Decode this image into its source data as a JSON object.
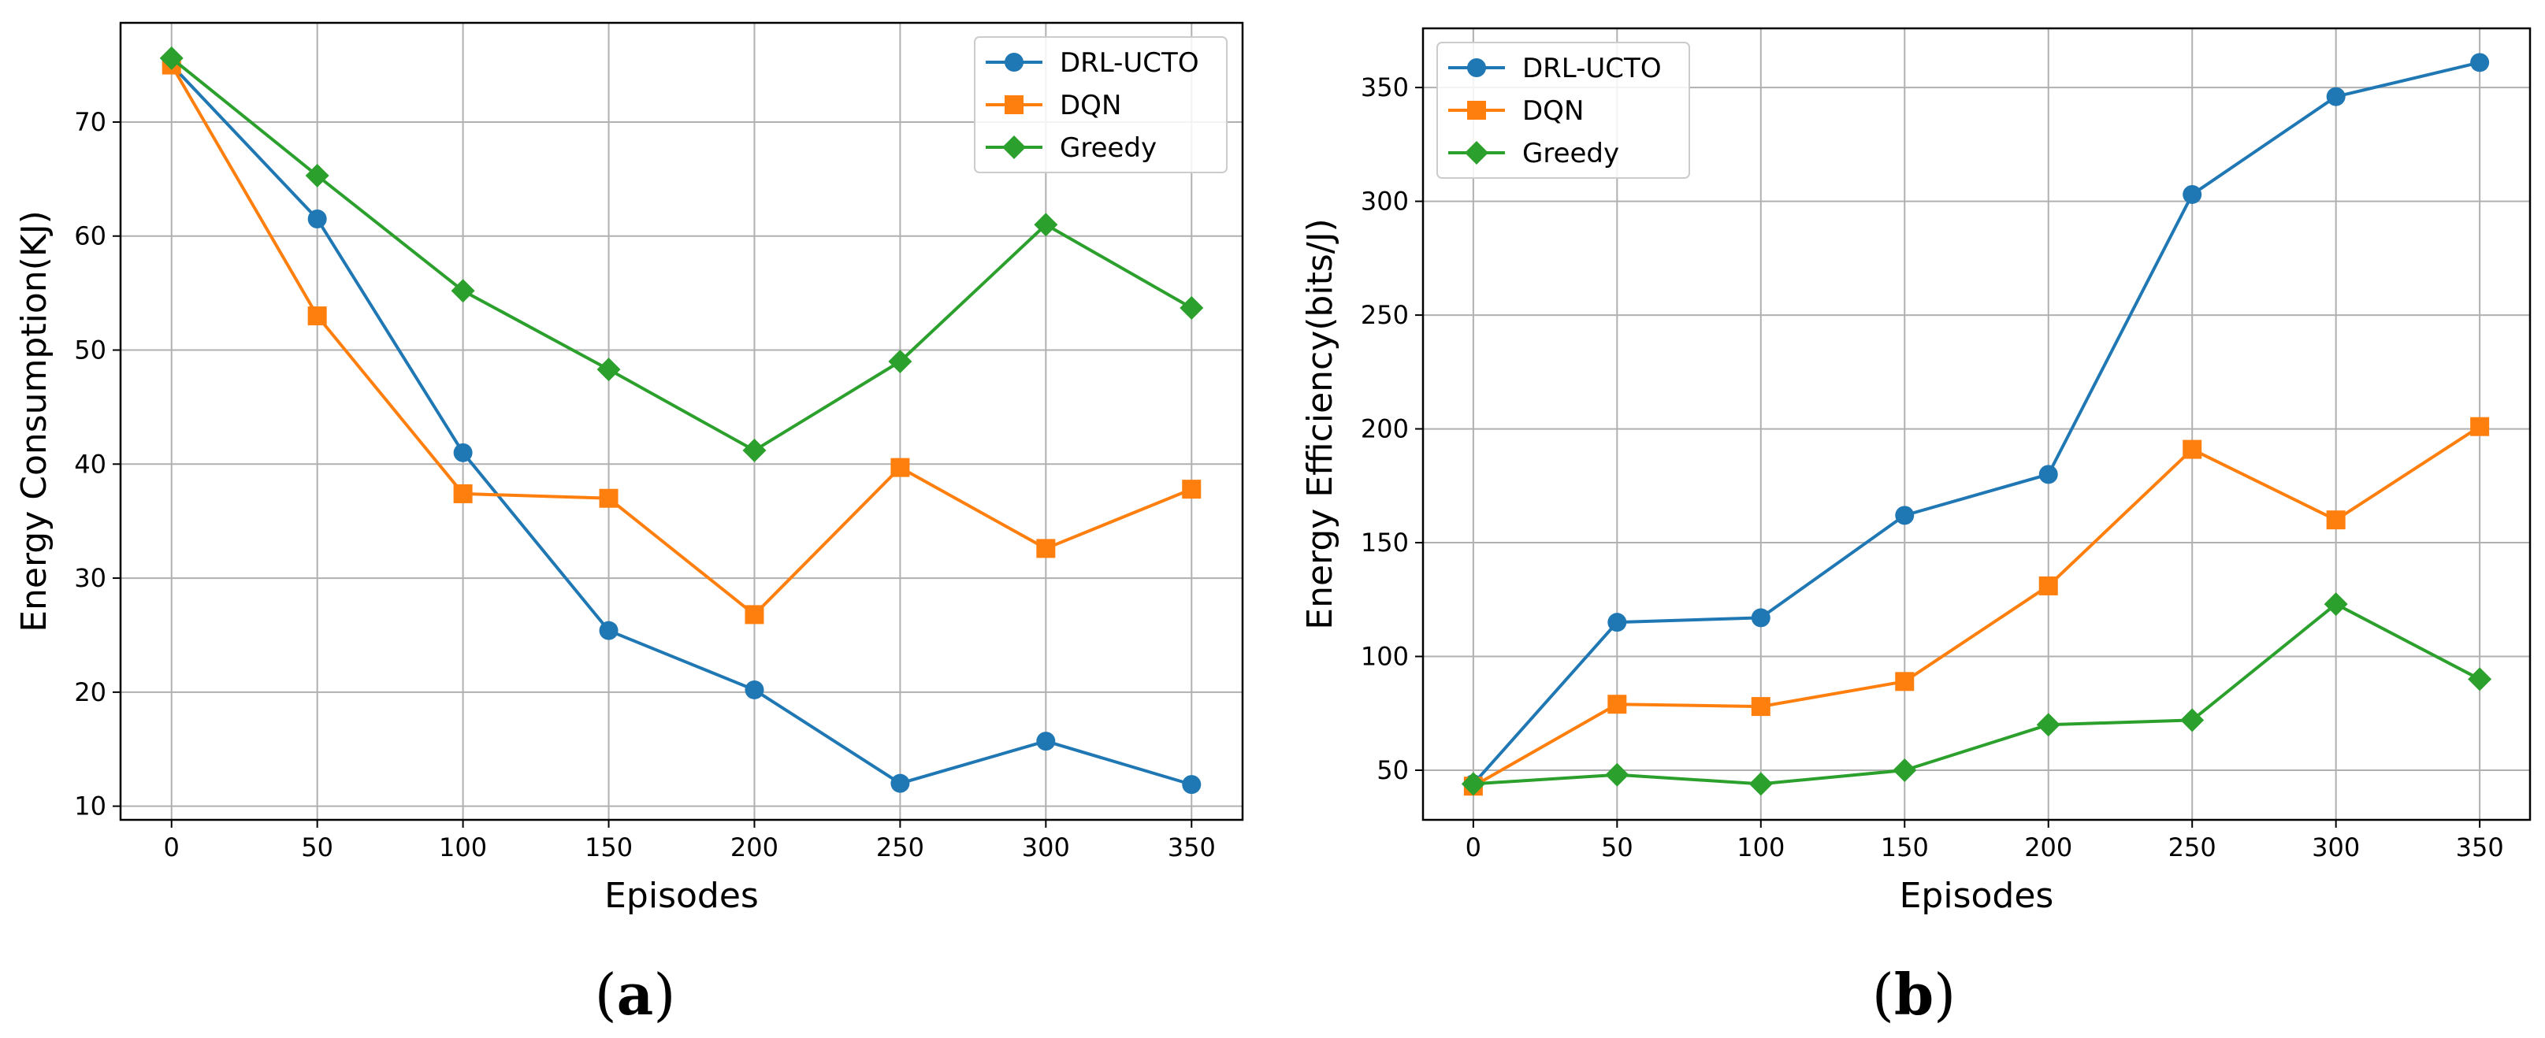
{
  "chart_data": [
    {
      "type": "line",
      "subfigure_label": {
        "open": "(",
        "letter": "a",
        "close": ")"
      },
      "title": "",
      "xlabel": "Episodes",
      "ylabel": "Energy Consumption(KJ)",
      "x": [
        0,
        50,
        100,
        150,
        200,
        250,
        300,
        350
      ],
      "xlim": [
        -17.5,
        367.5
      ],
      "ylim": [
        8.8,
        78.7
      ],
      "xticks": [
        0,
        50,
        100,
        150,
        200,
        250,
        300,
        350
      ],
      "yticks": [
        10,
        20,
        30,
        40,
        50,
        60,
        70
      ],
      "grid": true,
      "legend_position": "top-right",
      "series": [
        {
          "name": "DRL-UCTO",
          "color": "#1f77b4",
          "marker": "circle",
          "values": [
            75.0,
            61.5,
            41.0,
            25.4,
            20.2,
            12.0,
            15.7,
            11.9
          ]
        },
        {
          "name": "DQN",
          "color": "#ff7f0e",
          "marker": "square",
          "values": [
            75.0,
            53.0,
            37.4,
            37.0,
            26.8,
            39.7,
            32.6,
            37.8
          ]
        },
        {
          "name": "Greedy",
          "color": "#2ca02c",
          "marker": "diamond",
          "values": [
            75.6,
            65.3,
            55.2,
            48.3,
            41.2,
            49.0,
            61.0,
            53.7
          ]
        }
      ]
    },
    {
      "type": "line",
      "subfigure_label": {
        "open": "(",
        "letter": "b",
        "close": ")"
      },
      "title": "",
      "xlabel": "Episodes",
      "ylabel": "Energy Efficiency(bits/J)",
      "x": [
        0,
        50,
        100,
        150,
        200,
        250,
        300,
        350
      ],
      "xlim": [
        -17.5,
        367.5
      ],
      "ylim": [
        28.2,
        376.0
      ],
      "xticks": [
        0,
        50,
        100,
        150,
        200,
        250,
        300,
        350
      ],
      "yticks": [
        50,
        100,
        150,
        200,
        250,
        300,
        350
      ],
      "grid": true,
      "legend_position": "top-left",
      "series": [
        {
          "name": "DRL-UCTO",
          "color": "#1f77b4",
          "marker": "circle",
          "values": [
            44,
            115,
            117,
            162,
            180,
            303,
            346,
            361
          ]
        },
        {
          "name": "DQN",
          "color": "#ff7f0e",
          "marker": "square",
          "values": [
            43,
            79,
            78,
            89,
            131,
            191,
            160,
            201
          ]
        },
        {
          "name": "Greedy",
          "color": "#2ca02c",
          "marker": "diamond",
          "values": [
            44,
            48,
            44,
            50,
            70,
            72,
            123,
            90
          ]
        }
      ]
    }
  ]
}
